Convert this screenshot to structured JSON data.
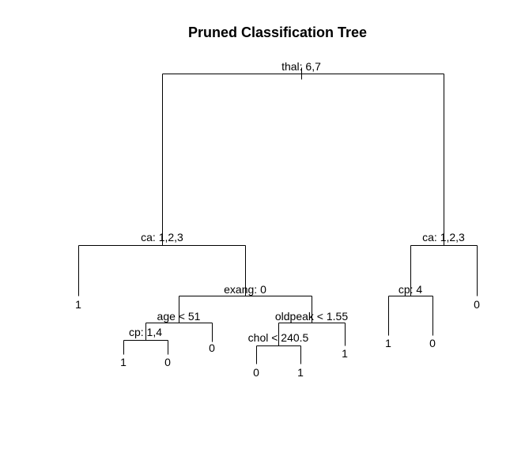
{
  "title": "Pruned Classification Tree",
  "nodes": [
    {
      "id": "root",
      "type": "split",
      "label": "thal: 6,7"
    },
    {
      "id": "left-ca",
      "type": "split",
      "label": "ca: 1,2,3"
    },
    {
      "id": "right-ca",
      "type": "split",
      "label": "ca: 1,2,3"
    },
    {
      "id": "exang",
      "type": "split",
      "label": "exang: 0"
    },
    {
      "id": "age",
      "type": "split",
      "label": "age < 51"
    },
    {
      "id": "oldpeak",
      "type": "split",
      "label": "oldpeak < 1.55"
    },
    {
      "id": "cp-left",
      "type": "split",
      "label": "cp: 1,4"
    },
    {
      "id": "chol",
      "type": "split",
      "label": "chol < 240.5"
    },
    {
      "id": "cp-right",
      "type": "split",
      "label": "cp: 4"
    },
    {
      "id": "leaf-1a",
      "type": "leaf",
      "label": "1"
    },
    {
      "id": "leaf-0a",
      "type": "leaf",
      "label": "0"
    },
    {
      "id": "leaf-1b",
      "type": "leaf",
      "label": "1"
    },
    {
      "id": "leaf-0b",
      "type": "leaf",
      "label": "0"
    },
    {
      "id": "leaf-0c",
      "type": "leaf",
      "label": "0"
    },
    {
      "id": "leaf-0d",
      "type": "leaf",
      "label": "0"
    },
    {
      "id": "leaf-1c",
      "type": "leaf",
      "label": "1"
    },
    {
      "id": "leaf-1d",
      "type": "leaf",
      "label": "1"
    },
    {
      "id": "leaf-1e",
      "type": "leaf",
      "label": "1"
    },
    {
      "id": "leaf-0e",
      "type": "leaf",
      "label": "0"
    }
  ]
}
